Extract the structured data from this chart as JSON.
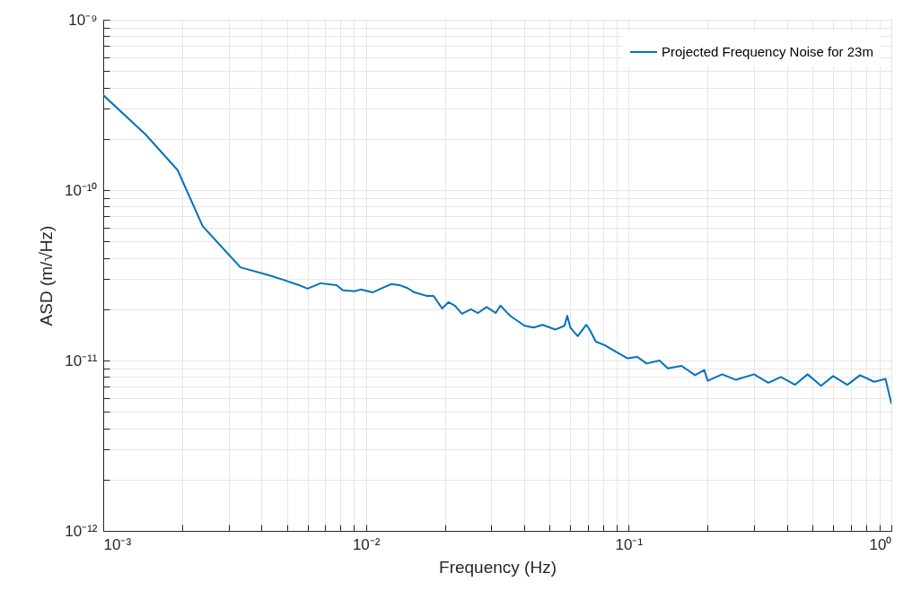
{
  "chart_data": {
    "type": "line",
    "xlabel": "Frequency (Hz)",
    "ylabel": "ASD (m/√Hz)",
    "log": "xy",
    "grid": true,
    "legend": "top right",
    "line_style": "solid",
    "marker": "none",
    "xlim": [
      0.001,
      1
    ],
    "ylim": [
      1e-12,
      1e-09
    ],
    "xticks": [
      {
        "value": 0.001,
        "label": "10⁻³"
      },
      {
        "value": 0.002,
        "label": null
      },
      {
        "value": 0.003,
        "label": null
      },
      {
        "value": 0.004,
        "label": null
      },
      {
        "value": 0.005,
        "label": null
      },
      {
        "value": 0.006,
        "label": null
      },
      {
        "value": 0.007,
        "label": null
      },
      {
        "value": 0.008,
        "label": null
      },
      {
        "value": 0.009,
        "label": null
      },
      {
        "value": 0.01,
        "label": "10⁻²"
      },
      {
        "value": 0.02,
        "label": null
      },
      {
        "value": 0.03,
        "label": null
      },
      {
        "value": 0.04,
        "label": null
      },
      {
        "value": 0.05,
        "label": null
      },
      {
        "value": 0.06,
        "label": null
      },
      {
        "value": 0.07,
        "label": null
      },
      {
        "value": 0.08,
        "label": null
      },
      {
        "value": 0.09,
        "label": null
      },
      {
        "value": 0.1,
        "label": "10⁻¹"
      },
      {
        "value": 0.2,
        "label": null
      },
      {
        "value": 0.3,
        "label": null
      },
      {
        "value": 0.4,
        "label": null
      },
      {
        "value": 0.5,
        "label": null
      },
      {
        "value": 0.6,
        "label": null
      },
      {
        "value": 0.7,
        "label": null
      },
      {
        "value": 0.8,
        "label": null
      },
      {
        "value": 0.9,
        "label": null
      },
      {
        "value": 1,
        "label": "10⁰"
      }
    ],
    "yticks": [
      {
        "value": 1e-12,
        "label": "10⁻¹²"
      },
      {
        "value": 2e-12,
        "label": null
      },
      {
        "value": 3e-12,
        "label": null
      },
      {
        "value": 4e-12,
        "label": null
      },
      {
        "value": 5e-12,
        "label": null
      },
      {
        "value": 6e-12,
        "label": null
      },
      {
        "value": 7e-12,
        "label": null
      },
      {
        "value": 8e-12,
        "label": null
      },
      {
        "value": 9e-12,
        "label": null
      },
      {
        "value": 1e-11,
        "label": "10⁻¹¹"
      },
      {
        "value": 2e-11,
        "label": null
      },
      {
        "value": 3e-11,
        "label": null
      },
      {
        "value": 4e-11,
        "label": null
      },
      {
        "value": 5e-11,
        "label": null
      },
      {
        "value": 6e-11,
        "label": null
      },
      {
        "value": 7e-11,
        "label": null
      },
      {
        "value": 8e-11,
        "label": null
      },
      {
        "value": 9e-11,
        "label": null
      },
      {
        "value": 1e-10,
        "label": "10⁻¹⁰"
      },
      {
        "value": 2e-10,
        "label": null
      },
      {
        "value": 3e-10,
        "label": null
      },
      {
        "value": 4e-10,
        "label": null
      },
      {
        "value": 5e-10,
        "label": null
      },
      {
        "value": 6e-10,
        "label": null
      },
      {
        "value": 7e-10,
        "label": null
      },
      {
        "value": 8e-10,
        "label": null
      },
      {
        "value": 9e-10,
        "label": null
      },
      {
        "value": 1e-09,
        "label": "10⁻⁹"
      }
    ],
    "series": [
      {
        "name": "Projected Frequency Noise for 23m",
        "color": "#0072bd",
        "x": [
          0.001,
          0.00145,
          0.00192,
          0.00239,
          0.00333,
          0.00428,
          0.00483,
          0.00556,
          0.006,
          0.00671,
          0.00773,
          0.00817,
          0.00905,
          0.00955,
          0.0106,
          0.0114,
          0.0125,
          0.0134,
          0.0144,
          0.0153,
          0.0171,
          0.0181,
          0.0195,
          0.0206,
          0.0218,
          0.0232,
          0.0251,
          0.0267,
          0.0288,
          0.0312,
          0.0325,
          0.0348,
          0.0357,
          0.0402,
          0.0435,
          0.047,
          0.0527,
          0.057,
          0.0584,
          0.06,
          0.064,
          0.069,
          0.071,
          0.075,
          0.081,
          0.089,
          0.099,
          0.108,
          0.117,
          0.131,
          0.141,
          0.159,
          0.179,
          0.194,
          0.2,
          0.227,
          0.256,
          0.3,
          0.34,
          0.38,
          0.43,
          0.48,
          0.54,
          0.6,
          0.68,
          0.76,
          0.86,
          0.95,
          1.0
        ],
        "values": [
          3.61e-10,
          2.12e-10,
          1.31e-10,
          6.15e-11,
          3.52e-11,
          3.16e-11,
          2.98e-11,
          2.77e-11,
          2.64e-11,
          2.84e-11,
          2.77e-11,
          2.58e-11,
          2.55e-11,
          2.61e-11,
          2.51e-11,
          2.64e-11,
          2.81e-11,
          2.77e-11,
          2.66e-11,
          2.51e-11,
          2.39e-11,
          2.39e-11,
          2.02e-11,
          2.2e-11,
          2.1e-11,
          1.88e-11,
          2e-11,
          1.9e-11,
          2.06e-11,
          1.9e-11,
          2.1e-11,
          1.88e-11,
          1.81e-11,
          1.6e-11,
          1.56e-11,
          1.62e-11,
          1.52e-11,
          1.6e-11,
          1.83e-11,
          1.56e-11,
          1.39e-11,
          1.62e-11,
          1.52e-11,
          1.29e-11,
          1.23e-11,
          1.13e-11,
          1.03e-11,
          1.05e-11,
          9.6e-12,
          1e-11,
          9e-12,
          9.3e-12,
          8.2e-12,
          8.8e-12,
          7.6e-12,
          8.3e-12,
          7.7e-12,
          8.3e-12,
          7.4e-12,
          8e-12,
          7.2e-12,
          8.3e-12,
          7.1e-12,
          8.1e-12,
          7.2e-12,
          8.2e-12,
          7.5e-12,
          7.8e-12,
          5.6e-12
        ]
      }
    ]
  }
}
